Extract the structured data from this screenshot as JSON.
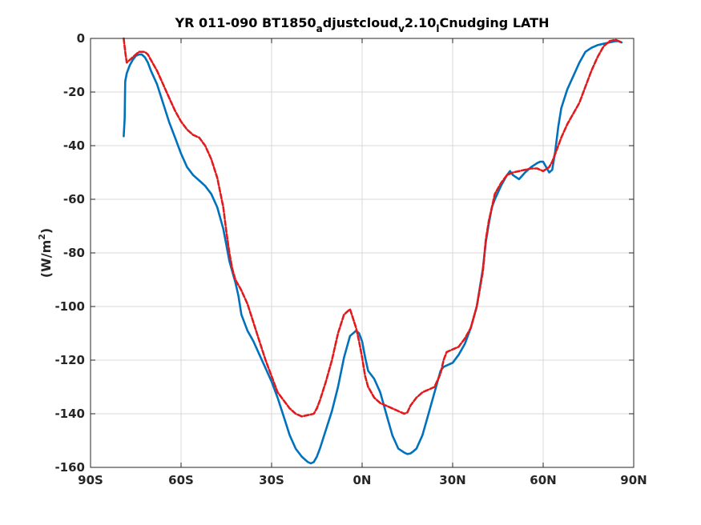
{
  "chart_data": {
    "type": "line",
    "title_parts": {
      "t1": "YR 011-090 BT1850",
      "s1": "a",
      "t2": "djustcloud",
      "s2": "v",
      "t3": "2.10",
      "s3": "l",
      "t4": "Cnudging LATH"
    },
    "ylabel_parts": {
      "pre": "(W/m",
      "sup": "2",
      "post": ")"
    },
    "xlim": [
      -90,
      90
    ],
    "ylim": [
      -160,
      0
    ],
    "x_ticks": [
      -90,
      -60,
      -30,
      0,
      30,
      60,
      90
    ],
    "x_tick_labels": [
      "90S",
      "60S",
      "30S",
      "0N",
      "30N",
      "60N",
      "90N"
    ],
    "y_ticks": [
      0,
      -20,
      -40,
      -60,
      -80,
      -100,
      -120,
      -140,
      -160
    ],
    "y_tick_labels": [
      "0",
      "-20",
      "-40",
      "-60",
      "-80",
      "-100",
      "-120",
      "-140",
      "-160"
    ],
    "grid": true,
    "colors": {
      "series1": "#0072BD",
      "series2": "#E31A1C",
      "grid": "#d9d9d9",
      "axis": "#262626"
    },
    "series": [
      {
        "style": "solid",
        "x": [
          -79,
          -78.7,
          -78.5,
          -78,
          -77,
          -76,
          -75,
          -74,
          -73,
          -72,
          -71,
          -70,
          -68,
          -66,
          -64,
          -62,
          -60,
          -58,
          -56,
          -54,
          -52,
          -50,
          -48,
          -46,
          -45,
          -44,
          -43,
          -42,
          -41,
          -40,
          -38,
          -37,
          -36,
          -34,
          -32,
          -30,
          -28,
          -26,
          -24,
          -22,
          -20,
          -18,
          -17,
          -16,
          -15,
          -14,
          -12,
          -10,
          -8,
          -6,
          -4,
          -2,
          -1,
          0,
          1,
          2,
          4,
          6,
          8,
          10,
          12,
          14,
          15,
          16,
          17,
          18,
          20,
          22,
          24,
          26,
          27,
          28,
          30,
          32,
          34,
          36,
          38,
          40,
          41,
          42,
          43,
          44,
          46,
          48,
          49,
          50,
          52,
          54,
          56,
          58,
          59,
          60,
          62,
          63,
          64,
          65,
          66,
          68,
          70,
          72,
          74,
          76,
          78,
          80,
          82,
          84,
          85,
          86
        ],
        "y": [
          -36.5,
          -30,
          -16,
          -13,
          -10,
          -8,
          -6.5,
          -6,
          -6,
          -7,
          -9,
          -12,
          -17,
          -24,
          -31,
          -37,
          -43,
          -48,
          -51,
          -53,
          -55,
          -58,
          -63,
          -71,
          -77,
          -83,
          -87,
          -91,
          -96,
          -103,
          -109,
          -111,
          -113,
          -118,
          -123,
          -128,
          -134,
          -141,
          -148,
          -153,
          -156,
          -158,
          -158.5,
          -158,
          -156,
          -153,
          -146,
          -139,
          -130,
          -119,
          -111,
          -109,
          -110,
          -113,
          -119,
          -124,
          -127,
          -132,
          -140,
          -148,
          -153,
          -154.5,
          -155,
          -154.8,
          -154,
          -153,
          -148,
          -140,
          -132,
          -124,
          -122.5,
          -122,
          -121,
          -118,
          -114,
          -108,
          -100,
          -86,
          -76,
          -69,
          -63,
          -60,
          -55,
          -51,
          -49.5,
          -51,
          -52.5,
          -50,
          -48,
          -46.5,
          -46,
          -46,
          -50,
          -49,
          -42,
          -33,
          -26,
          -19,
          -14,
          -9,
          -5,
          -3.5,
          -2.5,
          -2,
          -1.5,
          -1,
          -1,
          -1.5
        ]
      },
      {
        "style": "dashed",
        "x": [
          -79,
          -78.5,
          -78,
          -77,
          -76,
          -75,
          -74,
          -73,
          -72,
          -71,
          -70,
          -68,
          -66,
          -64,
          -62,
          -60,
          -58,
          -56,
          -54,
          -52,
          -50,
          -48,
          -46,
          -45,
          -44,
          -43,
          -42,
          -41,
          -40,
          -38,
          -36,
          -34,
          -32,
          -30,
          -28,
          -26,
          -24,
          -22,
          -20,
          -18,
          -16,
          -15,
          -14,
          -12,
          -10,
          -8,
          -6,
          -4,
          -2,
          -1,
          0,
          1,
          2,
          4,
          6,
          8,
          9,
          10,
          12,
          14,
          15,
          16,
          18,
          20,
          22,
          24,
          26,
          27,
          28,
          30,
          32,
          34,
          36,
          38,
          40,
          41,
          42,
          43,
          44,
          46,
          48,
          50,
          52,
          54,
          56,
          58,
          60,
          62,
          63,
          64,
          66,
          68,
          70,
          72,
          74,
          76,
          78,
          80,
          82,
          84,
          85,
          86
        ],
        "y": [
          0,
          -5,
          -9,
          -8,
          -7,
          -6,
          -5,
          -5,
          -5,
          -6,
          -8,
          -12,
          -17,
          -22,
          -27,
          -31,
          -34,
          -36,
          -37,
          -40,
          -45,
          -52,
          -63,
          -72,
          -80,
          -86,
          -90,
          -92,
          -94,
          -99,
          -106,
          -113,
          -120,
          -126,
          -132,
          -135,
          -138,
          -140,
          -141,
          -140.5,
          -140,
          -138,
          -135,
          -128,
          -120,
          -110,
          -103,
          -101,
          -108,
          -113,
          -119,
          -126,
          -130,
          -134,
          -136,
          -137,
          -137.5,
          -138,
          -139,
          -140,
          -139.5,
          -137,
          -134,
          -132,
          -131,
          -130,
          -125,
          -120,
          -117,
          -116,
          -115,
          -112,
          -108,
          -100,
          -87,
          -75,
          -68,
          -63,
          -58,
          -54,
          -51,
          -50,
          -49.5,
          -49,
          -48.5,
          -48.5,
          -49.5,
          -48,
          -46,
          -43,
          -37,
          -32,
          -28,
          -24,
          -18,
          -12,
          -7,
          -3,
          -1,
          -0.5,
          -1,
          -1.5
        ]
      }
    ]
  }
}
